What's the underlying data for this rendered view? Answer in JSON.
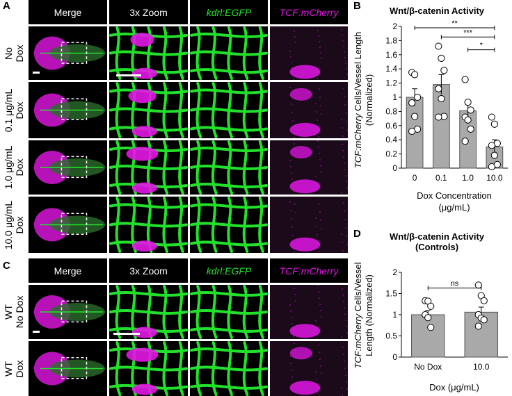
{
  "panels": {
    "A": "A",
    "B": "B",
    "C": "C",
    "D": "D"
  },
  "grid_headers": [
    "Merge",
    "3x Zoom",
    "kdrl:EGFP",
    "TCF:mCherry"
  ],
  "panel_a_rows": [
    "No\nDox",
    "0.1 μg/mL\nDox",
    "1.0 μg/mL\nDox",
    "10.0 μg/mL\nDox"
  ],
  "panel_c_rows": [
    "WT\nNo Dox",
    "WT\nDox"
  ],
  "colors": {
    "egfp": "#22e12a",
    "mcherry": "#e316e6",
    "bar": "#a9a9a9",
    "header_bg": "#000000"
  },
  "chart_data": [
    {
      "type": "bar",
      "title": "Wnt/β-catenin Activity",
      "ylabel_italic": "TCF:mCherry",
      "ylabel_rest": " Cells/Vessel Length",
      "ylabel_line2": "(Normalized)",
      "xlabel": "Dox Concentration",
      "xlabel_line2": "(μg/mL)",
      "categories": [
        "0",
        "0.1",
        "1.0",
        "10.0"
      ],
      "values": [
        1.0,
        1.18,
        0.81,
        0.3
      ],
      "errors": [
        0.12,
        0.14,
        0.09,
        0.1
      ],
      "points": [
        [
          1.35,
          1.32,
          1.0,
          0.92,
          0.73,
          0.55,
          0.52
        ],
        [
          1.72,
          1.55,
          1.38,
          1.12,
          0.98,
          0.73,
          0.72
        ],
        [
          1.25,
          0.93,
          0.82,
          0.72,
          0.68,
          0.55,
          0.38
        ],
        [
          0.72,
          0.62,
          0.35,
          0.32,
          0.18,
          0.05,
          0.02
        ]
      ],
      "ylim": [
        0,
        2
      ],
      "yticks": [
        "0",
        "0.2",
        "0.4",
        "0.6",
        "0.8",
        "1",
        "1.2",
        "1.4",
        "1.6",
        "1.8",
        "2"
      ],
      "significance": [
        {
          "from": 0,
          "to": 3,
          "label": "**",
          "y": 1.98
        },
        {
          "from": 1,
          "to": 3,
          "label": "***",
          "y": 1.85
        },
        {
          "from": 2,
          "to": 3,
          "label": "*",
          "y": 1.67
        }
      ]
    },
    {
      "type": "bar",
      "title": "Wnt/β-catenin Activity",
      "subtitle": "(Controls)",
      "ylabel_italic": "TCF:mCherry",
      "ylabel_rest": " Cells/Vessel",
      "ylabel_line2": "Length (Normalized)",
      "xlabel": "Dox (μg/mL)",
      "categories": [
        "No Dox",
        "10.0"
      ],
      "values": [
        1.0,
        1.06
      ],
      "errors": [
        0.1,
        0.12
      ],
      "points": [
        [
          1.33,
          1.32,
          1.2,
          1.0,
          0.93,
          0.7
        ],
        [
          1.7,
          1.45,
          1.33,
          1.0,
          0.92,
          0.88,
          0.73
        ]
      ],
      "ylim": [
        0,
        2
      ],
      "yticks": [
        "0",
        "0.5",
        "1",
        "1.5",
        "2"
      ],
      "significance": [
        {
          "from": 0,
          "to": 1,
          "label": "ns",
          "y": 1.63
        }
      ]
    }
  ]
}
